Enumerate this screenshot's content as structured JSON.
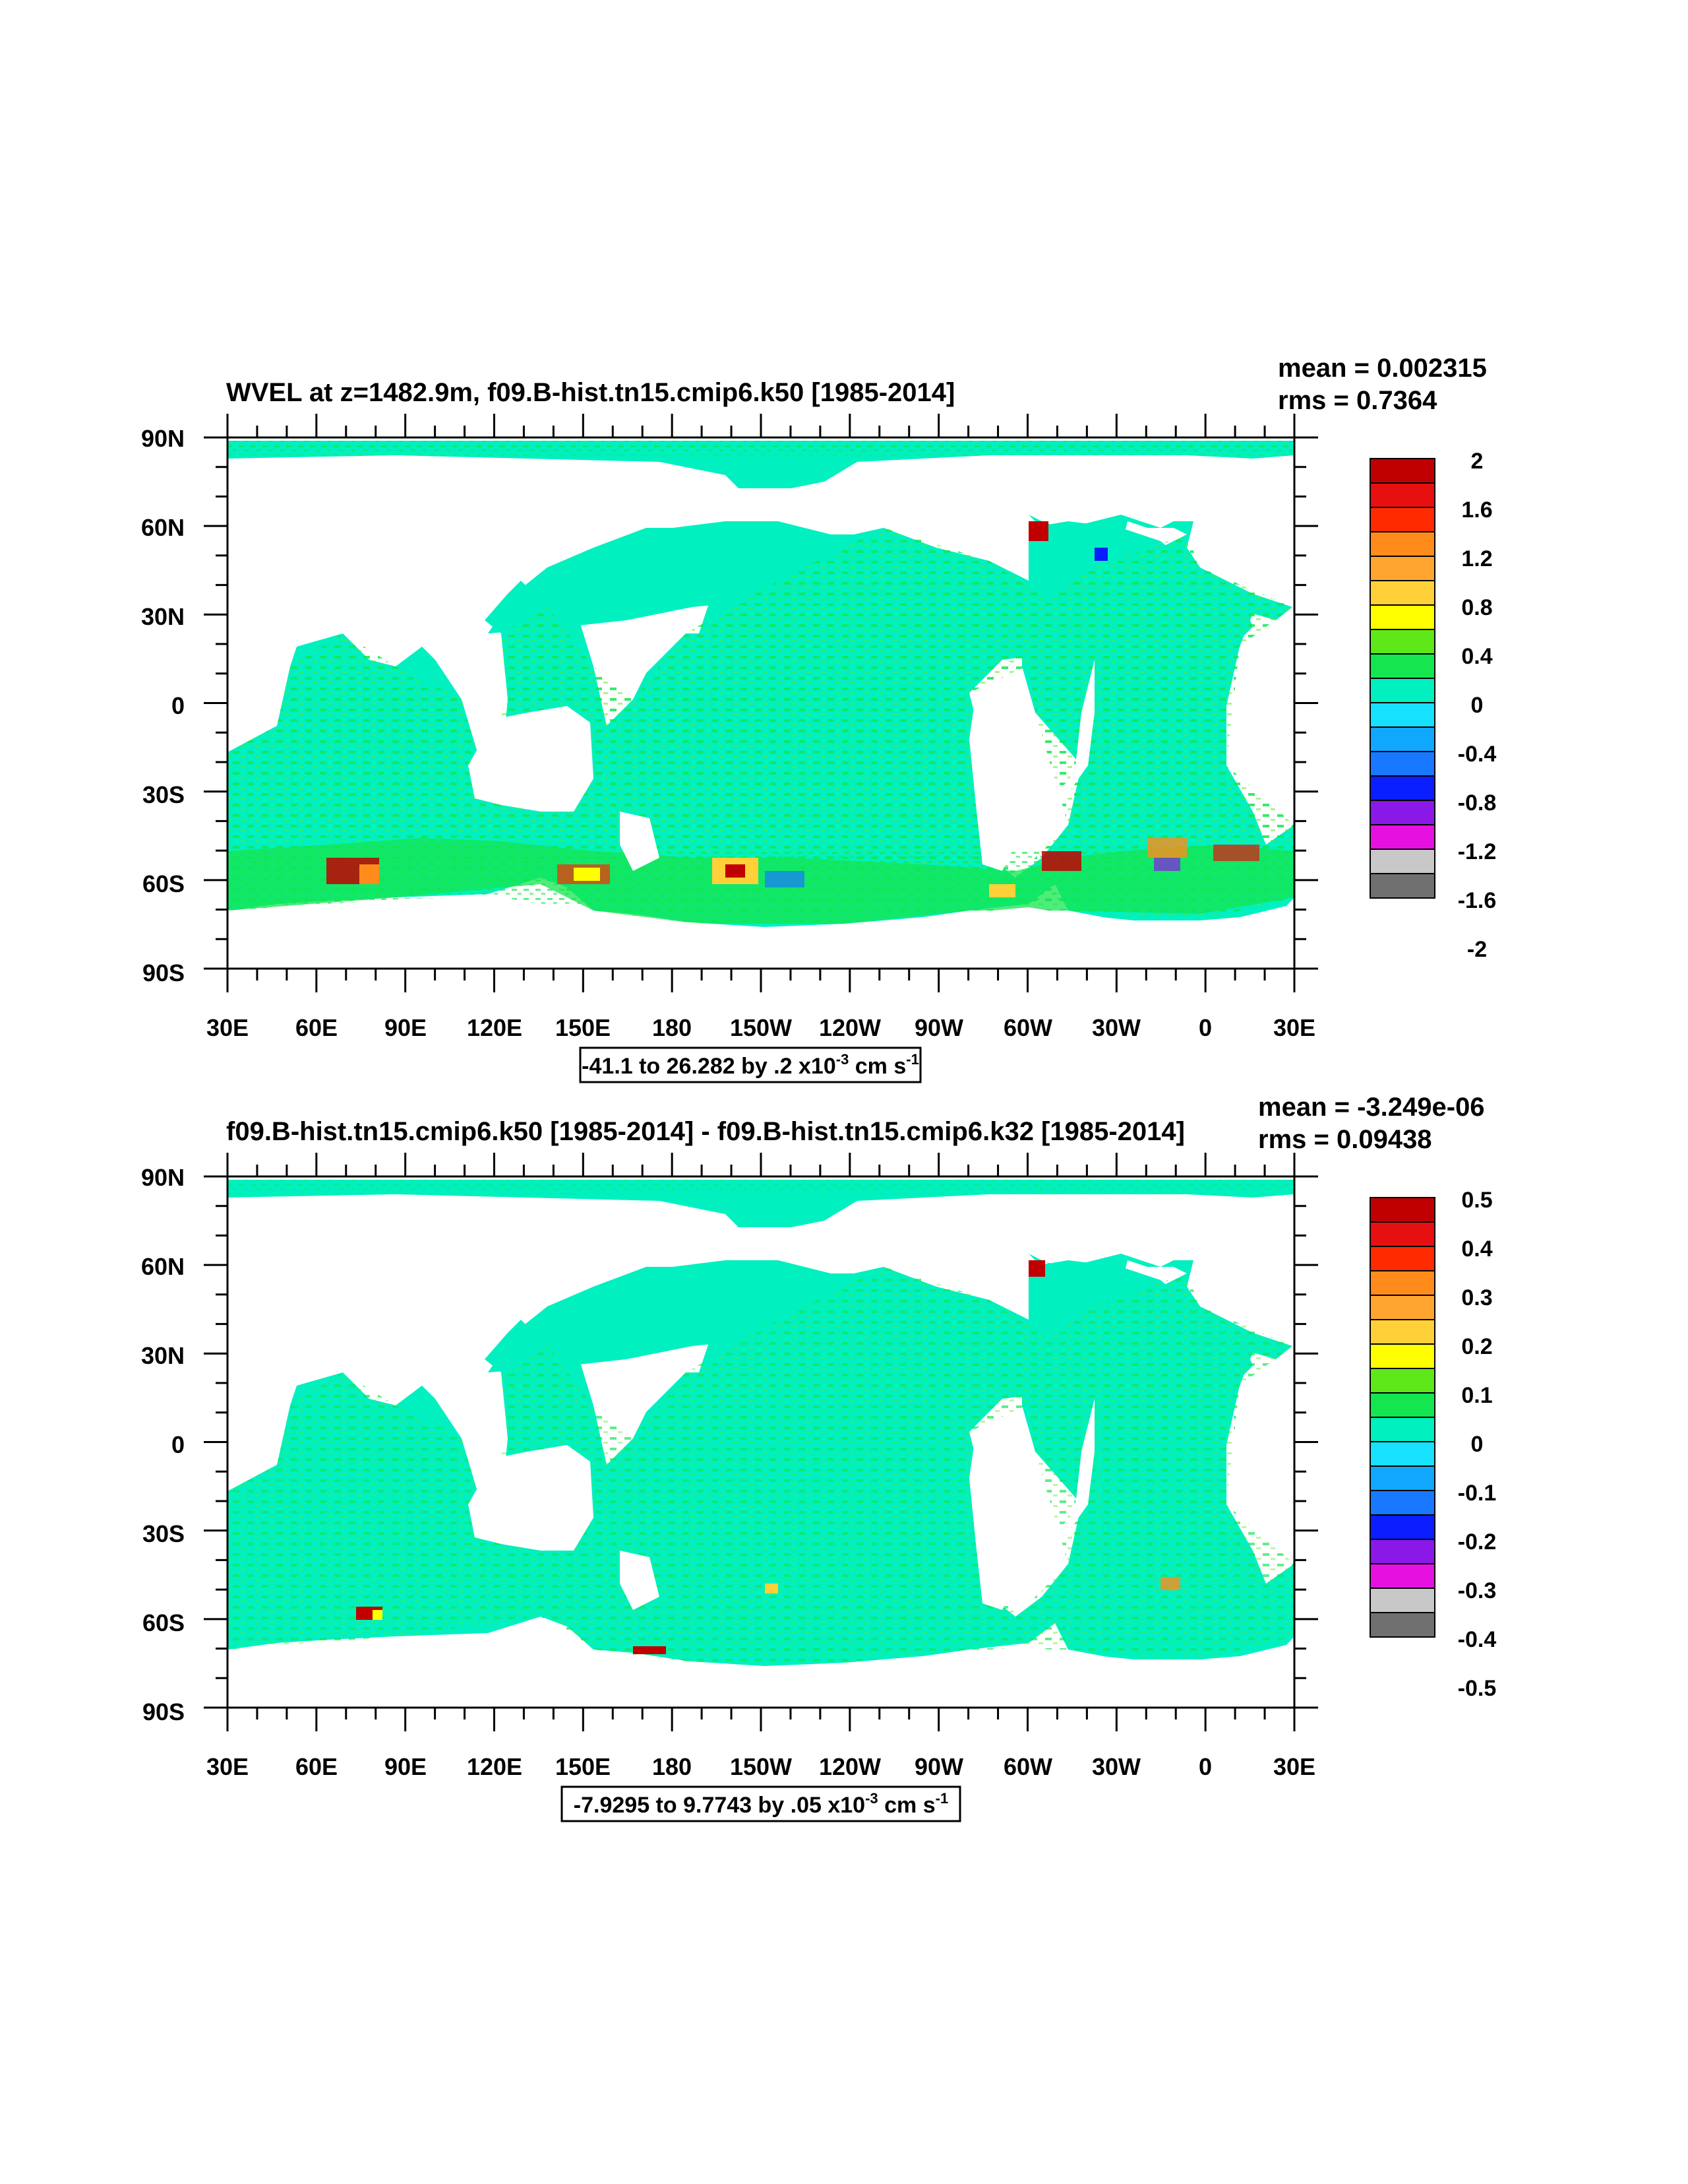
{
  "panels": [
    {
      "title": "WVEL at z=1482.9m, f09.B-hist.tn15.cmip6.k50 [1985-2014]",
      "stats": {
        "mean": "mean = 0.002315",
        "rms": "rms = 0.7364"
      },
      "lat_labels": [
        "90N",
        "60N",
        "30N",
        "0",
        "30S",
        "60S",
        "90S"
      ],
      "lon_labels": [
        "30E",
        "60E",
        "90E",
        "120E",
        "150E",
        "180",
        "150W",
        "120W",
        "90W",
        "60W",
        "30W",
        "0",
        "30E"
      ],
      "range_note": {
        "prefix": "-41.1 to 26.282 by .2 x10",
        "exp": "-3",
        "unit": " cm s",
        "unit_exp": "-1"
      },
      "colorbar_labels": [
        "2",
        "1.6",
        "1.2",
        "0.8",
        "0.4",
        "0",
        "-0.4",
        "-0.8",
        "-1.2",
        "-1.6",
        "-2"
      ]
    },
    {
      "title": "f09.B-hist.tn15.cmip6.k50 [1985-2014] - f09.B-hist.tn15.cmip6.k32 [1985-2014]",
      "stats": {
        "mean": "mean = -3.249e-06",
        "rms": "rms = 0.09438"
      },
      "lat_labels": [
        "90N",
        "60N",
        "30N",
        "0",
        "30S",
        "60S",
        "90S"
      ],
      "lon_labels": [
        "30E",
        "60E",
        "90E",
        "120E",
        "150E",
        "180",
        "150W",
        "120W",
        "90W",
        "60W",
        "30W",
        "0",
        "30E"
      ],
      "range_note": {
        "prefix": "-7.9295 to 9.7743 by .05 x10",
        "exp": "-3",
        "unit": " cm s",
        "unit_exp": "-1"
      },
      "colorbar_labels": [
        "0.5",
        "0.4",
        "0.3",
        "0.2",
        "0.1",
        "0",
        "-0.1",
        "-0.2",
        "-0.3",
        "-0.4",
        "-0.5"
      ]
    }
  ],
  "palette": [
    "#c00000",
    "#e61010",
    "#ff2a00",
    "#ff8c1a",
    "#ffa530",
    "#ffd038",
    "#ffff00",
    "#5ee81a",
    "#14e650",
    "#00f0c0",
    "#18e0ff",
    "#10a8ff",
    "#1878ff",
    "#0a1eff",
    "#8a18e6",
    "#e610e0",
    "#c8c8c8",
    "#707070"
  ],
  "ocean_colors": {
    "main": "#00f0c0",
    "secondary": "#14e650",
    "deep_blue": "#18e0ff"
  }
}
